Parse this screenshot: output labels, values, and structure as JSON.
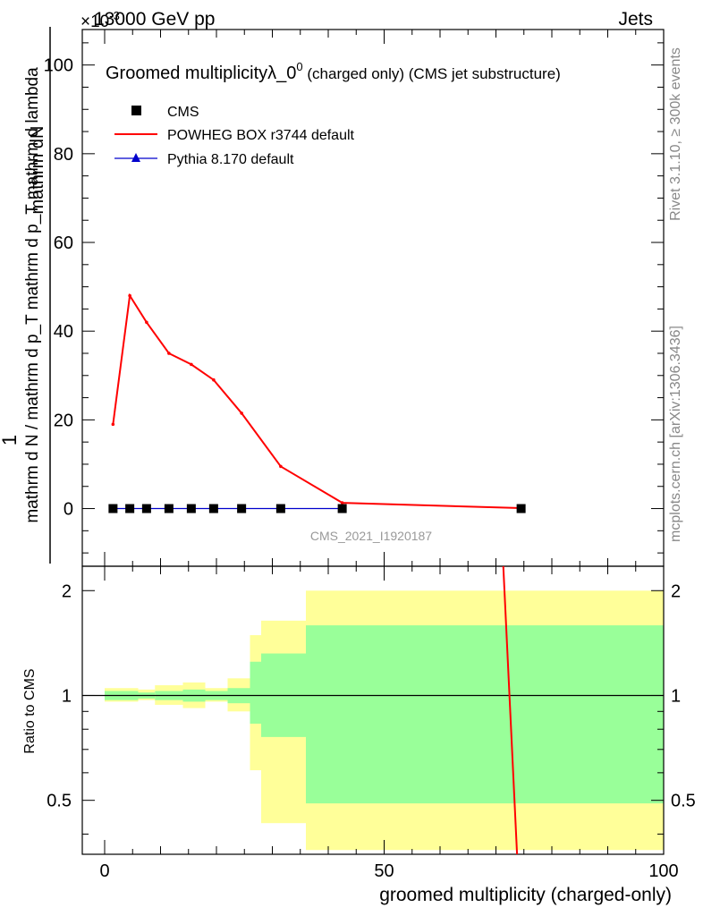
{
  "header": {
    "energy_label": "13000 GeV pp",
    "exponent_label": "×10",
    "exponent_value": "-3",
    "process_label": "Jets"
  },
  "side_text": {
    "rivet": "Rivet 3.1.10, ≥ 300k events",
    "mcplots": "mcplots.cern.ch [arXiv:1306.3436]"
  },
  "chart_data": [
    {
      "type": "line",
      "title": "Groomed multiplicityλ_0",
      "title_sup": "0",
      "title_suffix": " (charged only) (CMS jet substructure)",
      "watermark": "CMS_2021_I1920187",
      "ylabel_top": "1",
      "ylabel_num": "mathrm dN",
      "ylabel_den": "mathrm d N / mathrm d p_T mathrm d p_T mathrm d lambda",
      "xlim": [
        -4,
        100
      ],
      "ylim": [
        -13,
        108
      ],
      "yticks": [
        0,
        20,
        40,
        60,
        80,
        100
      ],
      "xticks": [
        0,
        50,
        100
      ],
      "legend_position": "top-left",
      "series": [
        {
          "name": "CMS",
          "color": "#000000",
          "marker": "square",
          "x": [
            1.5,
            4.5,
            7.5,
            11.5,
            15.5,
            19.5,
            24.5,
            31.5,
            42.5,
            74.5
          ],
          "y": [
            0,
            0,
            0,
            0,
            0,
            0,
            0,
            0,
            0,
            0
          ]
        },
        {
          "name": "POWHEG BOX r3744 default",
          "color": "#ff0000",
          "marker": "none",
          "x": [
            1.5,
            4.5,
            7.5,
            11.5,
            15.5,
            19.5,
            24.5,
            31.5,
            42.5,
            74.5
          ],
          "y": [
            19,
            48,
            42,
            35,
            32.5,
            29,
            21.5,
            9.5,
            1.3,
            0.1
          ]
        },
        {
          "name": "Pythia 8.170 default",
          "color": "#0000cc",
          "marker": "triangle",
          "x": [
            1.5,
            4.5,
            7.5,
            11.5,
            15.5,
            19.5,
            24.5,
            31.5,
            42.5
          ],
          "y": [
            0,
            0,
            0,
            0,
            0,
            0,
            0,
            0,
            0
          ]
        }
      ]
    },
    {
      "type": "line",
      "ylabel": "Ratio to CMS",
      "xlabel": "groomed multiplicity (charged-only)",
      "xlim": [
        -4,
        100
      ],
      "ylim": [
        0.35,
        2.35
      ],
      "yscale": "log",
      "yticks": [
        0.5,
        1,
        2
      ],
      "xticks": [
        0,
        50,
        100
      ],
      "bands": {
        "edges": [
          0,
          4,
          6,
          9,
          14,
          18,
          22,
          26,
          28,
          36,
          50,
          100
        ],
        "inner_color": "#99ff99",
        "outer_color": "#ffff99",
        "inner_low": [
          0.97,
          0.97,
          0.98,
          0.97,
          0.96,
          0.97,
          0.95,
          0.83,
          0.76,
          0.49,
          0.49
        ],
        "inner_high": [
          1.03,
          1.03,
          1.02,
          1.03,
          1.04,
          1.03,
          1.05,
          1.25,
          1.32,
          1.59,
          1.59
        ],
        "outer_low": [
          0.96,
          0.96,
          0.97,
          0.94,
          0.92,
          0.96,
          0.9,
          0.61,
          0.43,
          0.36,
          0.36
        ],
        "outer_high": [
          1.05,
          1.05,
          1.04,
          1.07,
          1.09,
          1.05,
          1.12,
          1.49,
          1.64,
          2.0,
          2.0
        ]
      },
      "series": [
        {
          "name": "POWHEG BOX r3744 default",
          "color": "#ff0000",
          "x": [
            71,
            74.5
          ],
          "y": [
            3.0,
            0.2
          ]
        }
      ]
    }
  ]
}
